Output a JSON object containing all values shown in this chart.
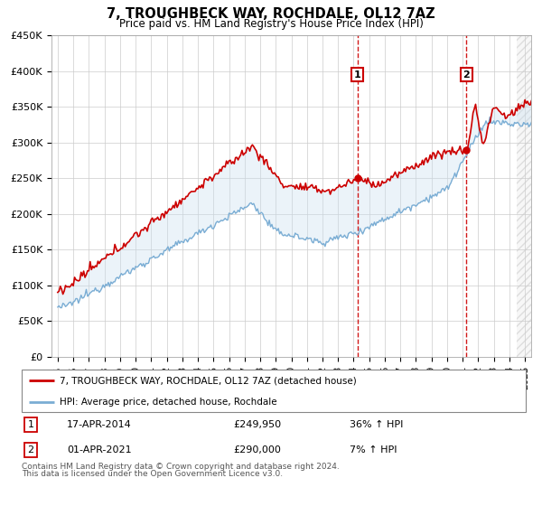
{
  "title": "7, TROUGHBECK WAY, ROCHDALE, OL12 7AZ",
  "subtitle": "Price paid vs. HM Land Registry's House Price Index (HPI)",
  "ylim": [
    0,
    450000
  ],
  "yticks": [
    0,
    50000,
    100000,
    150000,
    200000,
    250000,
    300000,
    350000,
    400000,
    450000
  ],
  "ytick_labels": [
    "£0",
    "£50K",
    "£100K",
    "£150K",
    "£200K",
    "£250K",
    "£300K",
    "£350K",
    "£400K",
    "£450K"
  ],
  "t1_year": 2014,
  "t1_month": 4,
  "t1_price": 249950,
  "t2_year": 2021,
  "t2_month": 4,
  "t2_price": 290000,
  "legend_house": "7, TROUGHBECK WAY, ROCHDALE, OL12 7AZ (detached house)",
  "legend_hpi": "HPI: Average price, detached house, Rochdale",
  "table_row1": [
    "1",
    "17-APR-2014",
    "£249,950",
    "36% ↑ HPI"
  ],
  "table_row2": [
    "2",
    "01-APR-2021",
    "£290,000",
    "7% ↑ HPI"
  ],
  "footnote1": "Contains HM Land Registry data © Crown copyright and database right 2024.",
  "footnote2": "This data is licensed under the Open Government Licence v3.0.",
  "line_color_house": "#cc0000",
  "line_color_hpi": "#7aadd4",
  "fill_color": "#c8dff0",
  "vline_color": "#cc0000",
  "marker_box_color": "#cc0000",
  "hatch_start": 2024.5,
  "xlim_left": 1994.6,
  "xlim_right": 2025.4
}
